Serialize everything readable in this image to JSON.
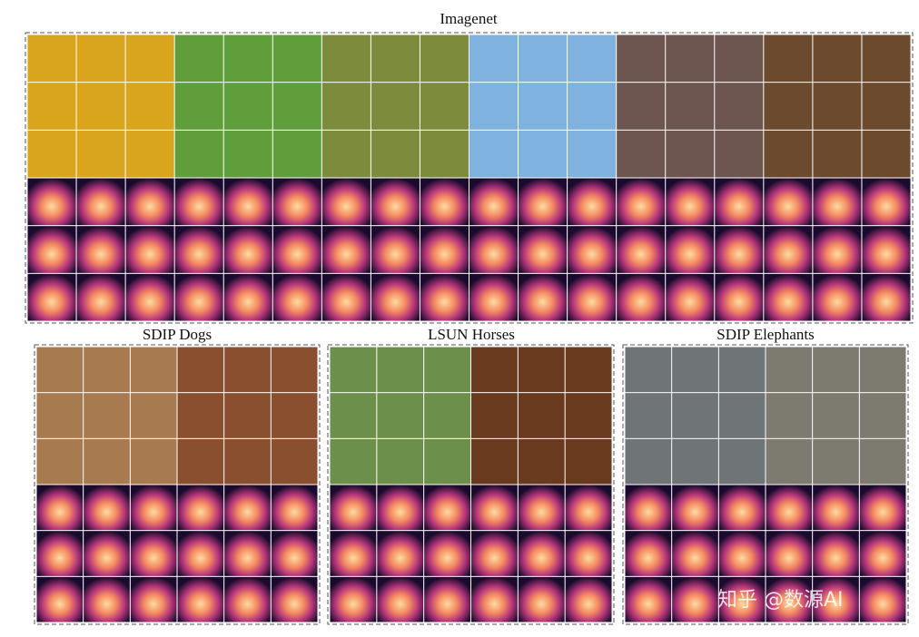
{
  "panels": [
    {
      "title": "Imagenet"
    },
    {
      "title": "SDIP Dogs"
    },
    {
      "title": "LSUN Horses"
    },
    {
      "title": "SDIP Elephants"
    }
  ],
  "watermark": "知乎 @数源AI"
}
